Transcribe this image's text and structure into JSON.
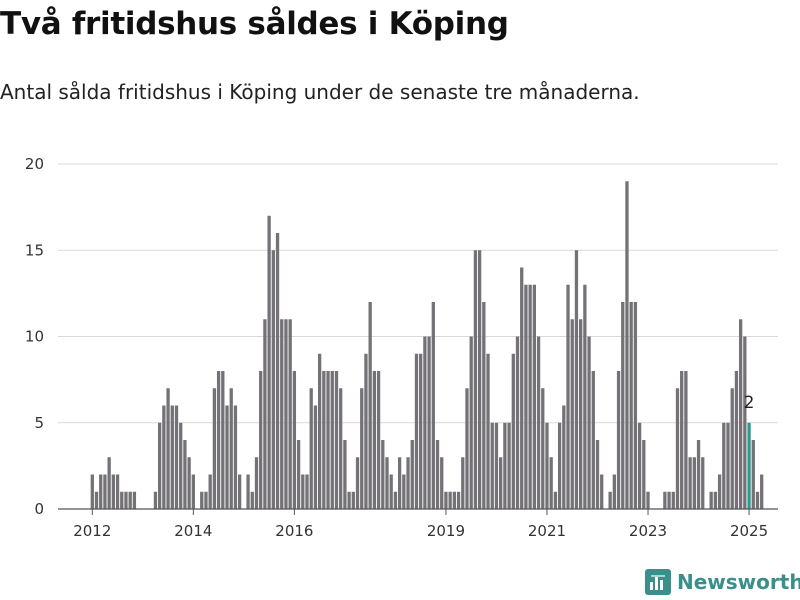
{
  "title": "Två fritidshus såldes i Köping",
  "subtitle": "Antal sålda fritidshus i Köping under de senaste tre månaderna.",
  "brand": {
    "name": "Newsworthy",
    "icon": "newsworthy-logo-icon",
    "color": "#3a8f8a"
  },
  "chart_data": {
    "type": "bar",
    "ylim": [
      0,
      20
    ],
    "y_ticks": [
      0,
      5,
      10,
      15,
      20
    ],
    "x_ticks": [
      {
        "label": "2012",
        "index": 0
      },
      {
        "label": "2014",
        "index": 24
      },
      {
        "label": "2016",
        "index": 48
      },
      {
        "label": "2019",
        "index": 84
      },
      {
        "label": "2021",
        "index": 108
      },
      {
        "label": "2023",
        "index": 132
      },
      {
        "label": "2025",
        "index": 156
      }
    ],
    "grid": true,
    "bar_color": "#747276",
    "highlight_color": "#2a9d8f",
    "highlight_index": 156,
    "highlight_label": "2",
    "values": [
      2,
      1,
      2,
      2,
      3,
      2,
      2,
      1,
      1,
      1,
      1,
      0,
      0,
      0,
      0,
      1,
      5,
      6,
      7,
      6,
      6,
      5,
      4,
      3,
      2,
      0,
      1,
      1,
      2,
      7,
      8,
      8,
      6,
      7,
      6,
      2,
      0,
      2,
      1,
      3,
      8,
      11,
      17,
      15,
      16,
      11,
      11,
      11,
      8,
      4,
      2,
      2,
      7,
      6,
      9,
      8,
      8,
      8,
      8,
      7,
      4,
      1,
      1,
      3,
      7,
      9,
      12,
      8,
      8,
      4,
      3,
      2,
      1,
      3,
      2,
      3,
      4,
      9,
      9,
      10,
      10,
      12,
      4,
      3,
      1,
      1,
      1,
      1,
      3,
      7,
      10,
      15,
      15,
      12,
      9,
      5,
      5,
      3,
      5,
      5,
      9,
      10,
      14,
      13,
      13,
      13,
      10,
      7,
      5,
      3,
      1,
      5,
      6,
      13,
      11,
      15,
      11,
      13,
      10,
      8,
      4,
      2,
      0,
      1,
      2,
      8,
      12,
      19,
      12,
      12,
      5,
      4,
      1,
      0,
      0,
      0,
      1,
      1,
      1,
      7,
      8,
      8,
      3,
      3,
      4,
      3,
      0,
      1,
      1,
      2,
      5,
      5,
      7,
      8,
      11,
      10,
      5,
      4,
      1,
      2
    ]
  }
}
